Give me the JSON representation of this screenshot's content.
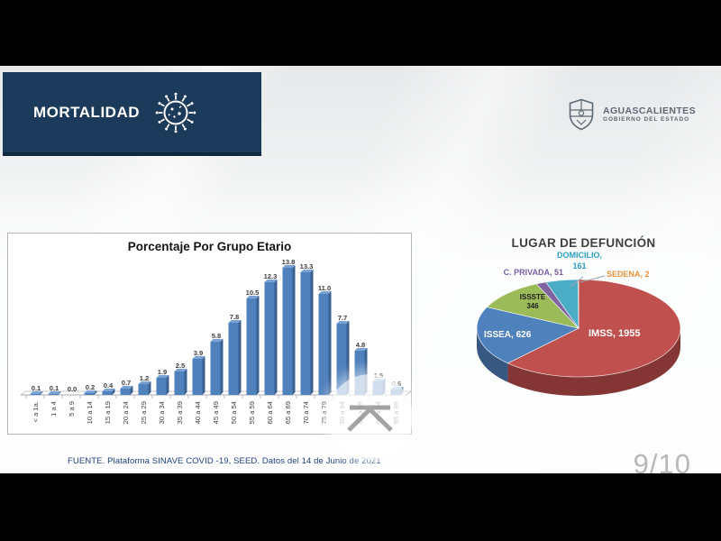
{
  "header": {
    "title": "MORTALIDAD"
  },
  "logo": {
    "name": "AGUASCALIENTES",
    "subtitle": "GOBIERNO DEL ESTADO"
  },
  "footer": {
    "source": "FUENTE. Plataforma SINAVE COVID -19, SEED. Datos del 14 de Junio de 2021"
  },
  "page_indicator": "9/10",
  "chart_data": [
    {
      "type": "bar",
      "style": "3d-column",
      "title": "Porcentaje Por Grupo Etario",
      "categories": [
        "< a 1a.",
        "1 a 4",
        "5 a 9",
        "10 a 14",
        "15 a 19",
        "20 a 24",
        "25 a 29",
        "30 a 34",
        "35 a 39",
        "40 a 44",
        "45 a 49",
        "50 a 54",
        "55 a 59",
        "60 a 64",
        "65 a 69",
        "70 a 74",
        "75 a 79",
        "80 a 84",
        "85 a 89",
        "90 a 94",
        "95 a 99"
      ],
      "values": [
        0.1,
        0.1,
        0.0,
        0.2,
        0.4,
        0.7,
        1.2,
        1.9,
        2.5,
        3.9,
        5.8,
        7.8,
        10.5,
        12.3,
        13.8,
        13.3,
        11.0,
        7.7,
        4.8,
        1.5,
        0.6
      ],
      "bar_color": "#4f81bd",
      "xlabel": "",
      "ylabel": "",
      "ylim": [
        0,
        14.5
      ],
      "grid": false,
      "value_labels_shown": true
    },
    {
      "type": "pie",
      "style": "3d-pie",
      "title": "LUGAR DE DEFUNCIÓN",
      "start_angle_deg": 0,
      "direction": "clockwise",
      "slices": [
        {
          "label": "IMSS",
          "value": 1955,
          "color": "#c0504d",
          "label_lines": [
            "IMSS, 1955"
          ],
          "label_color": "#ffffff"
        },
        {
          "label": "ISSEA",
          "value": 626,
          "color": "#4f81bd",
          "label_lines": [
            "ISSEA, 626"
          ],
          "label_color": "#ffffff"
        },
        {
          "label": "ISSSTE",
          "value": 346,
          "color": "#9bbb59",
          "label_lines": [
            "ISSSTE",
            "346"
          ],
          "label_color": "#1f1f1f"
        },
        {
          "label": "C. PRIVADA",
          "value": 51,
          "color": "#8064a2",
          "label_lines": [
            "C. PRIVADA, 51"
          ],
          "label_color": "#7b5ea5"
        },
        {
          "label": "DOMICILIO",
          "value": 161,
          "color": "#4bacc6",
          "label_lines": [
            "DOMICILIO,",
            "161"
          ],
          "label_color": "#2b9fc2"
        },
        {
          "label": "SEDENA",
          "value": 2,
          "color": "#f79646",
          "label_lines": [
            "SEDENA, 2"
          ],
          "label_color": "#e8913a"
        }
      ]
    }
  ],
  "watermark": {
    "icon": "minimize-chevron"
  }
}
